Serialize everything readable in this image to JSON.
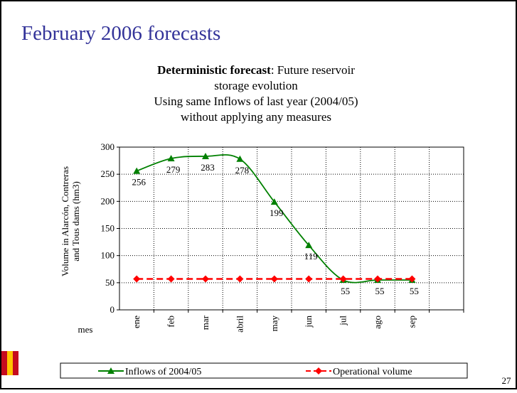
{
  "slide_title": "February 2006 forecasts",
  "page_number": "27",
  "chart_data": {
    "type": "line",
    "title": "Deterministic forecast",
    "title_lines": [
      ": Future reservoir",
      "storage evolution",
      "Using same Inflows of last year (2004/05)",
      "without applying any measures"
    ],
    "y_label_lines": [
      "Volume in Alarcón, Contreras",
      "and Tous dams (hm3)"
    ],
    "x_label": "mes",
    "categories": [
      "ene",
      "feb",
      "mar",
      "abril",
      "may",
      "jun",
      "jul",
      "ago",
      "sep",
      null
    ],
    "series": [
      {
        "name": "Inflows of  2004/05",
        "color": "#008000",
        "marker": "triangle",
        "smooth": true,
        "show_labels": true,
        "values": [
          256,
          279,
          283,
          278,
          199,
          119,
          55,
          55,
          55,
          null
        ]
      },
      {
        "name": "Operational volume",
        "color": "#ff0000",
        "marker": "diamond",
        "dashed": true,
        "show_labels": false,
        "values": [
          57,
          57,
          57,
          57,
          57,
          57,
          57,
          57,
          57,
          null
        ]
      }
    ],
    "ylim": [
      0,
      300
    ],
    "yticks": [
      0,
      50,
      100,
      150,
      200,
      250,
      300
    ],
    "grid": true,
    "legend": "bottom"
  }
}
